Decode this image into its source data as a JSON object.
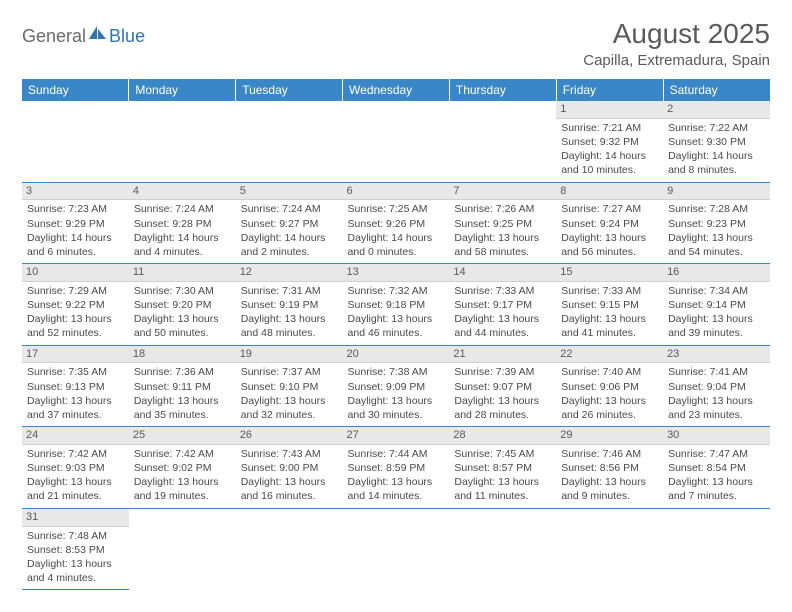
{
  "brand": {
    "part1": "General",
    "part2": "Blue"
  },
  "title": "August 2025",
  "location": "Capilla, Extremadura, Spain",
  "colors": {
    "header_bg": "#3a87c7",
    "header_text": "#ffffff",
    "daynum_bg": "#e8e8e8",
    "border": "#3a87c7",
    "text": "#4a4a4a",
    "brand_gray": "#6a6a6a",
    "brand_blue": "#2e75b6"
  },
  "weekdays": [
    "Sunday",
    "Monday",
    "Tuesday",
    "Wednesday",
    "Thursday",
    "Friday",
    "Saturday"
  ],
  "days": [
    {
      "n": 1,
      "sunrise": "7:21 AM",
      "sunset": "9:32 PM",
      "daylight": "14 hours and 10 minutes."
    },
    {
      "n": 2,
      "sunrise": "7:22 AM",
      "sunset": "9:30 PM",
      "daylight": "14 hours and 8 minutes."
    },
    {
      "n": 3,
      "sunrise": "7:23 AM",
      "sunset": "9:29 PM",
      "daylight": "14 hours and 6 minutes."
    },
    {
      "n": 4,
      "sunrise": "7:24 AM",
      "sunset": "9:28 PM",
      "daylight": "14 hours and 4 minutes."
    },
    {
      "n": 5,
      "sunrise": "7:24 AM",
      "sunset": "9:27 PM",
      "daylight": "14 hours and 2 minutes."
    },
    {
      "n": 6,
      "sunrise": "7:25 AM",
      "sunset": "9:26 PM",
      "daylight": "14 hours and 0 minutes."
    },
    {
      "n": 7,
      "sunrise": "7:26 AM",
      "sunset": "9:25 PM",
      "daylight": "13 hours and 58 minutes."
    },
    {
      "n": 8,
      "sunrise": "7:27 AM",
      "sunset": "9:24 PM",
      "daylight": "13 hours and 56 minutes."
    },
    {
      "n": 9,
      "sunrise": "7:28 AM",
      "sunset": "9:23 PM",
      "daylight": "13 hours and 54 minutes."
    },
    {
      "n": 10,
      "sunrise": "7:29 AM",
      "sunset": "9:22 PM",
      "daylight": "13 hours and 52 minutes."
    },
    {
      "n": 11,
      "sunrise": "7:30 AM",
      "sunset": "9:20 PM",
      "daylight": "13 hours and 50 minutes."
    },
    {
      "n": 12,
      "sunrise": "7:31 AM",
      "sunset": "9:19 PM",
      "daylight": "13 hours and 48 minutes."
    },
    {
      "n": 13,
      "sunrise": "7:32 AM",
      "sunset": "9:18 PM",
      "daylight": "13 hours and 46 minutes."
    },
    {
      "n": 14,
      "sunrise": "7:33 AM",
      "sunset": "9:17 PM",
      "daylight": "13 hours and 44 minutes."
    },
    {
      "n": 15,
      "sunrise": "7:33 AM",
      "sunset": "9:15 PM",
      "daylight": "13 hours and 41 minutes."
    },
    {
      "n": 16,
      "sunrise": "7:34 AM",
      "sunset": "9:14 PM",
      "daylight": "13 hours and 39 minutes."
    },
    {
      "n": 17,
      "sunrise": "7:35 AM",
      "sunset": "9:13 PM",
      "daylight": "13 hours and 37 minutes."
    },
    {
      "n": 18,
      "sunrise": "7:36 AM",
      "sunset": "9:11 PM",
      "daylight": "13 hours and 35 minutes."
    },
    {
      "n": 19,
      "sunrise": "7:37 AM",
      "sunset": "9:10 PM",
      "daylight": "13 hours and 32 minutes."
    },
    {
      "n": 20,
      "sunrise": "7:38 AM",
      "sunset": "9:09 PM",
      "daylight": "13 hours and 30 minutes."
    },
    {
      "n": 21,
      "sunrise": "7:39 AM",
      "sunset": "9:07 PM",
      "daylight": "13 hours and 28 minutes."
    },
    {
      "n": 22,
      "sunrise": "7:40 AM",
      "sunset": "9:06 PM",
      "daylight": "13 hours and 26 minutes."
    },
    {
      "n": 23,
      "sunrise": "7:41 AM",
      "sunset": "9:04 PM",
      "daylight": "13 hours and 23 minutes."
    },
    {
      "n": 24,
      "sunrise": "7:42 AM",
      "sunset": "9:03 PM",
      "daylight": "13 hours and 21 minutes."
    },
    {
      "n": 25,
      "sunrise": "7:42 AM",
      "sunset": "9:02 PM",
      "daylight": "13 hours and 19 minutes."
    },
    {
      "n": 26,
      "sunrise": "7:43 AM",
      "sunset": "9:00 PM",
      "daylight": "13 hours and 16 minutes."
    },
    {
      "n": 27,
      "sunrise": "7:44 AM",
      "sunset": "8:59 PM",
      "daylight": "13 hours and 14 minutes."
    },
    {
      "n": 28,
      "sunrise": "7:45 AM",
      "sunset": "8:57 PM",
      "daylight": "13 hours and 11 minutes."
    },
    {
      "n": 29,
      "sunrise": "7:46 AM",
      "sunset": "8:56 PM",
      "daylight": "13 hours and 9 minutes."
    },
    {
      "n": 30,
      "sunrise": "7:47 AM",
      "sunset": "8:54 PM",
      "daylight": "13 hours and 7 minutes."
    },
    {
      "n": 31,
      "sunrise": "7:48 AM",
      "sunset": "8:53 PM",
      "daylight": "13 hours and 4 minutes."
    }
  ],
  "first_day_column": 5,
  "labels": {
    "sunrise": "Sunrise:",
    "sunset": "Sunset:",
    "daylight": "Daylight:"
  }
}
